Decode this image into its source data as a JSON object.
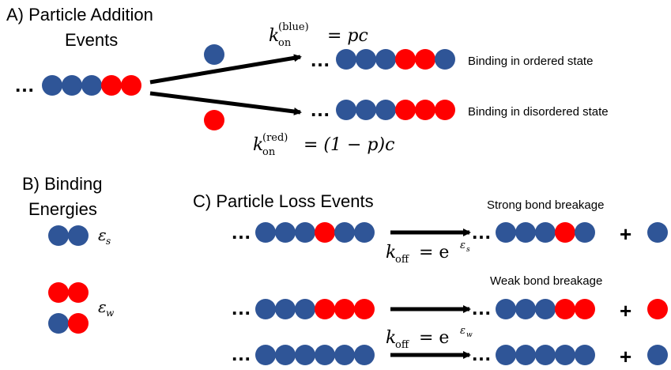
{
  "colors": {
    "blue": "#2f5597",
    "red": "#ff0000",
    "arrow": "#000000",
    "text": "#000000"
  },
  "sections": {
    "A": {
      "title_line1": "A) Particle Addition",
      "title_line2": "Events"
    },
    "B": {
      "title_line1": "B) Binding",
      "title_line2": "Energies"
    },
    "C": {
      "title": "C) Particle Loss Events"
    }
  },
  "ellipsis": "…",
  "plus": "+",
  "labels": {
    "ordered": "Binding in ordered state",
    "disordered": "Binding in disordered state",
    "strong": "Strong bond breakage",
    "weak": "Weak bond breakage"
  },
  "rates": {
    "blue": {
      "k": "k",
      "sub": "on",
      "sup": "(blue)",
      "rhs": "= pc"
    },
    "red": {
      "k": "k",
      "sub": "on",
      "sup": "(red)",
      "rhs": "= (1 − p)c"
    },
    "off_strong": {
      "k": "k",
      "sub": "off",
      "rhs": "= e",
      "exp": "ε",
      "exp_sub": "s"
    },
    "off_weak": {
      "k": "k",
      "sub": "off",
      "rhs": "= e",
      "exp": "ε",
      "exp_sub": "w"
    }
  },
  "energies": {
    "strong": {
      "symbol": "ε",
      "sub": "s"
    },
    "weak": {
      "symbol": "ε",
      "sub": "w"
    }
  },
  "chains": {
    "a_initial": [
      "b",
      "b",
      "b",
      "r",
      "r"
    ],
    "a_free_blue": [
      "b"
    ],
    "a_free_red": [
      "r"
    ],
    "a_ordered": [
      "b",
      "b",
      "b",
      "r",
      "r",
      "b"
    ],
    "a_disordered": [
      "b",
      "b",
      "b",
      "r",
      "r",
      "r"
    ],
    "b_strong": [
      "b",
      "b"
    ],
    "b_weak_red": [
      "r",
      "r"
    ],
    "b_weak_mixed": [
      "b",
      "r"
    ],
    "c1_before": [
      "b",
      "b",
      "b",
      "r",
      "b",
      "b"
    ],
    "c1_after": [
      "b",
      "b",
      "b",
      "r",
      "b"
    ],
    "c1_loss": [
      "r_placeholder"
    ],
    "c2_before": [
      "b",
      "b",
      "b",
      "r",
      "r",
      "r"
    ],
    "c2_after": [
      "b",
      "b",
      "b",
      "r",
      "r"
    ],
    "c3_before": [
      "b",
      "b",
      "b",
      "b",
      "b",
      "b"
    ],
    "c3_after": [
      "b",
      "b",
      "b",
      "b",
      "b"
    ],
    "c1_free": [
      "b"
    ],
    "c2_free": [
      "r"
    ],
    "c3_free": [
      "b"
    ]
  }
}
